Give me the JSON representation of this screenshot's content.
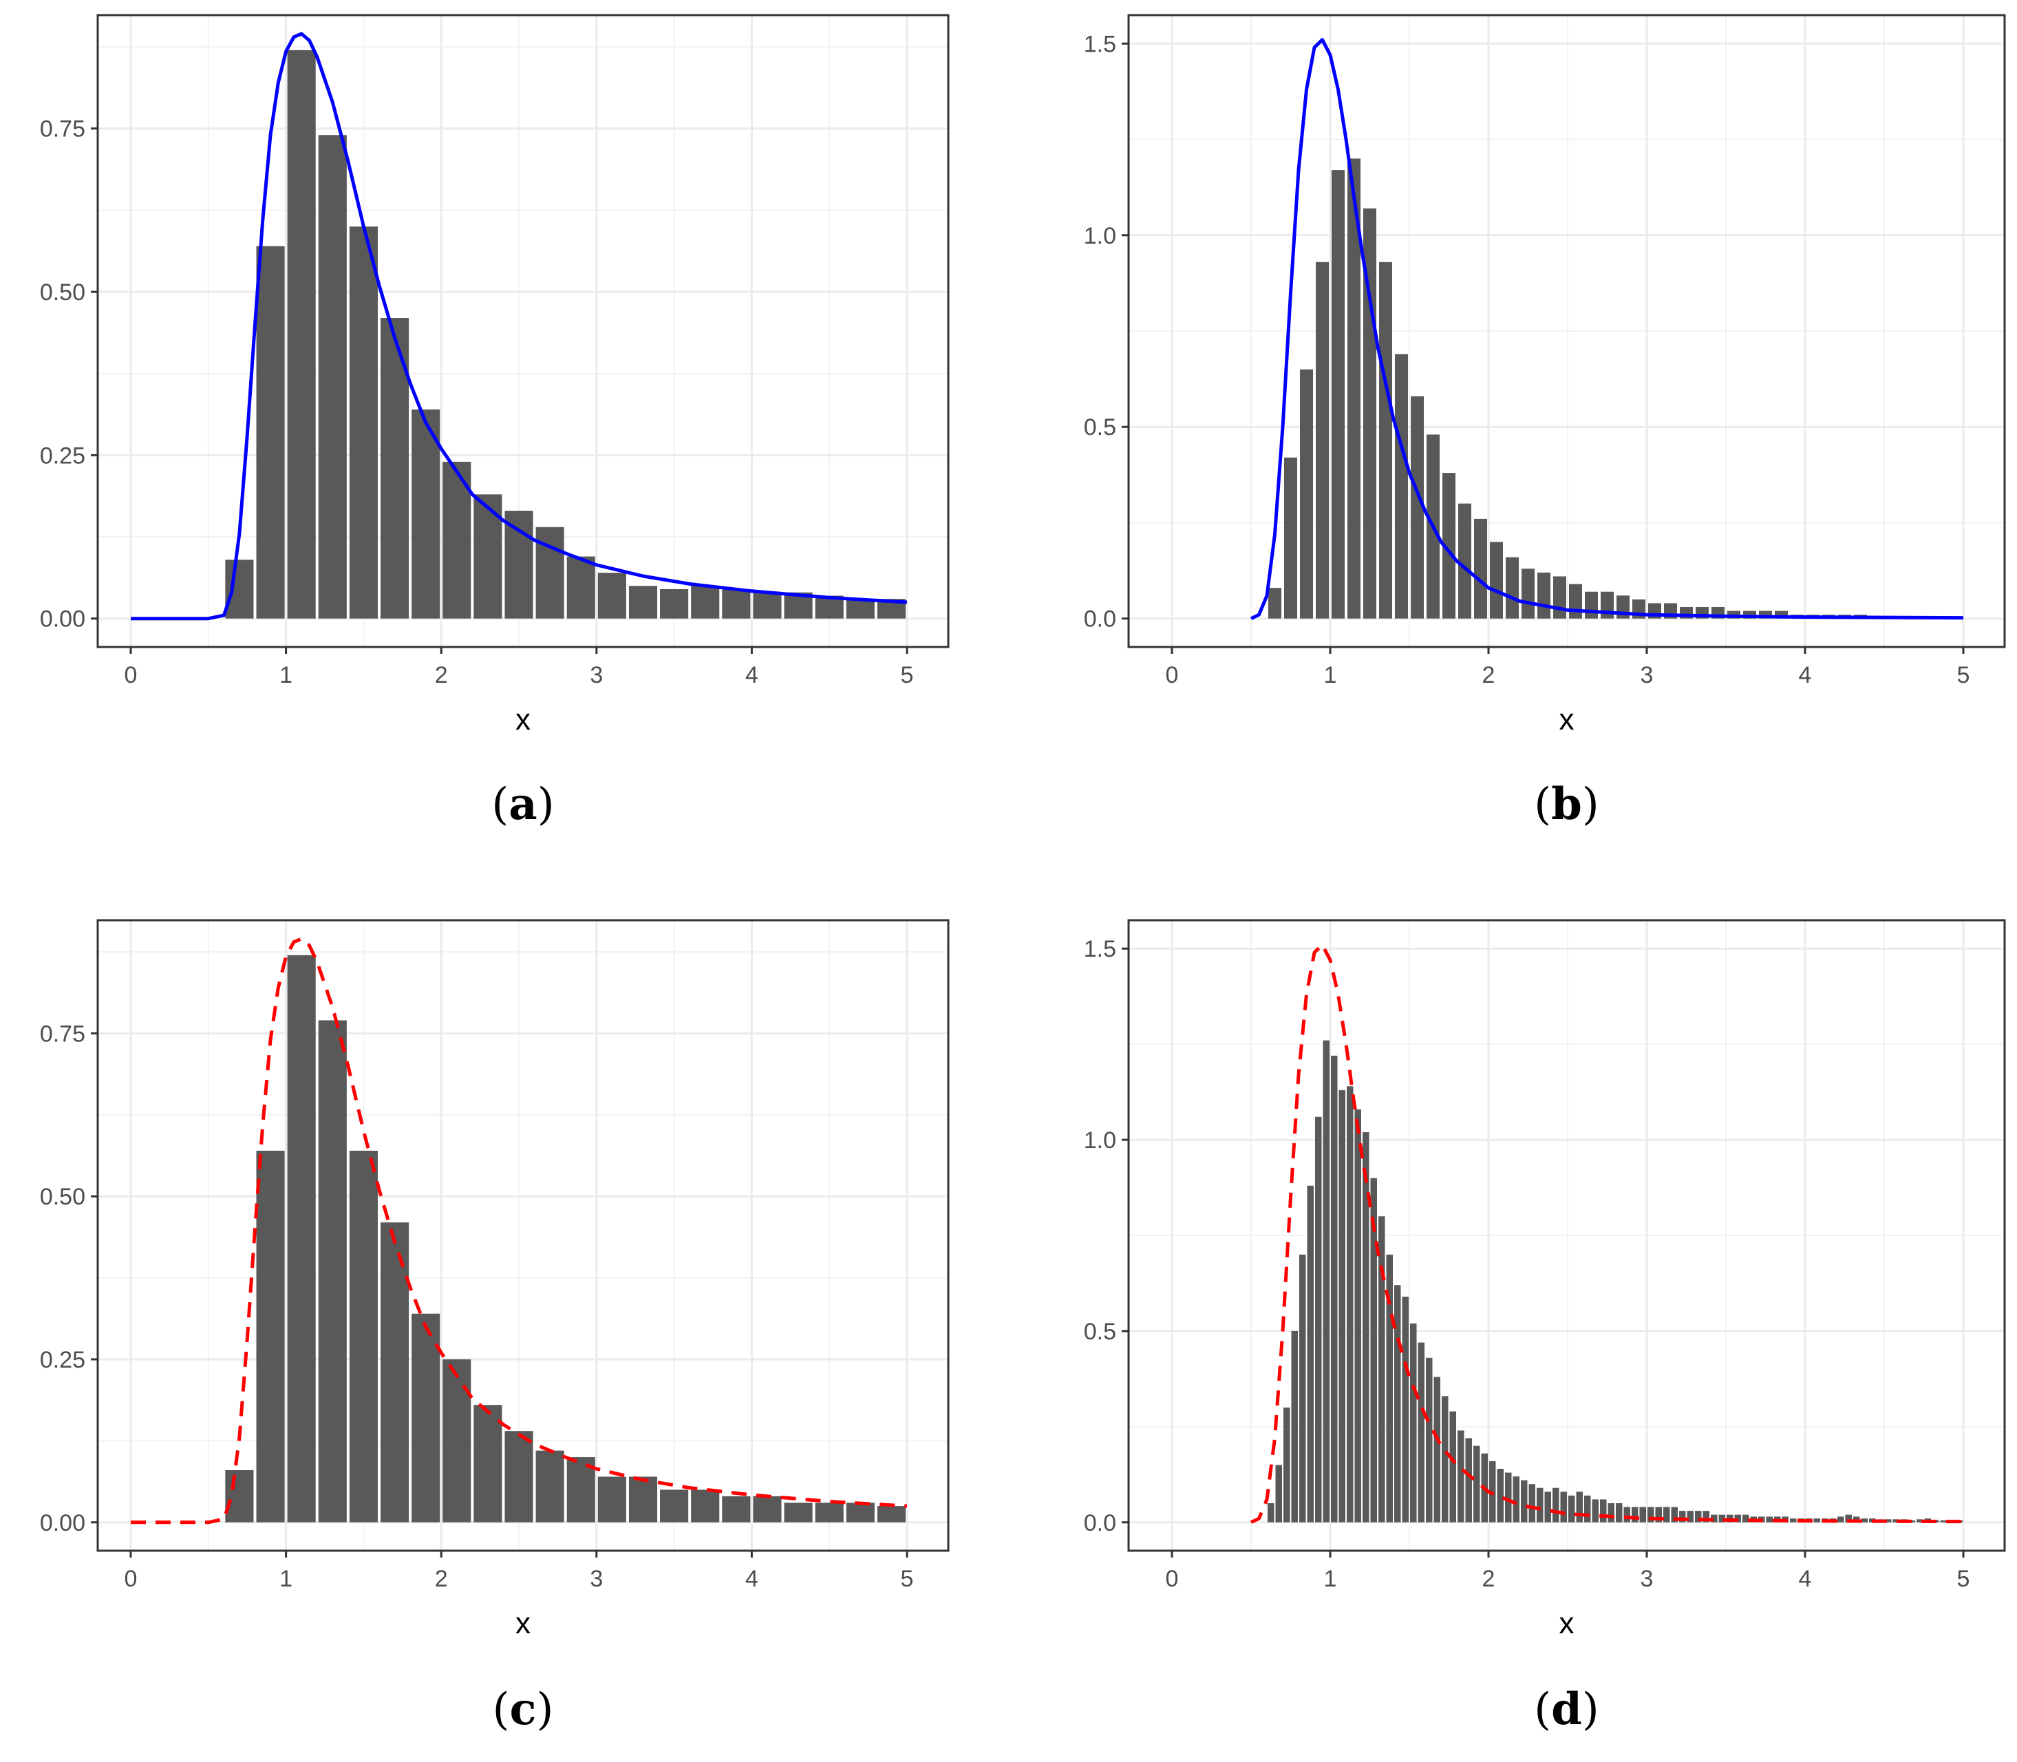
{
  "chart_data": [
    {
      "type": "bar",
      "caption": "(a)",
      "caption_letter": "a",
      "xlabel": "x",
      "ylabel": "",
      "xlim": [
        0,
        5
      ],
      "ylim": [
        0,
        0.88
      ],
      "xticks": [
        0,
        1,
        2,
        3,
        4,
        5
      ],
      "yticks": [
        0.0,
        0.25,
        0.5,
        0.75
      ],
      "ytick_labels": [
        "0.00",
        "0.25",
        "0.50",
        "0.75"
      ],
      "grid": true,
      "bar_color": "#595959",
      "bins": {
        "start": 0.6,
        "width": 0.2,
        "values": [
          0.09,
          0.57,
          0.87,
          0.74,
          0.6,
          0.46,
          0.32,
          0.24,
          0.19,
          0.165,
          0.14,
          0.095,
          0.07,
          0.05,
          0.045,
          0.05,
          0.045,
          0.04,
          0.04,
          0.035,
          0.03,
          0.03
        ]
      },
      "curve": {
        "color": "#0000ff",
        "style": "solid",
        "x": [
          0,
          0.5,
          0.6,
          0.65,
          0.7,
          0.75,
          0.8,
          0.85,
          0.9,
          0.95,
          1.0,
          1.05,
          1.1,
          1.15,
          1.2,
          1.3,
          1.4,
          1.5,
          1.6,
          1.7,
          1.8,
          1.9,
          2.0,
          2.2,
          2.4,
          2.6,
          2.8,
          3.0,
          3.3,
          3.6,
          4.0,
          4.5,
          5.0
        ],
        "y": [
          0.0,
          0.0,
          0.005,
          0.04,
          0.13,
          0.28,
          0.45,
          0.61,
          0.74,
          0.82,
          0.868,
          0.89,
          0.895,
          0.885,
          0.86,
          0.79,
          0.7,
          0.6,
          0.51,
          0.43,
          0.36,
          0.3,
          0.26,
          0.19,
          0.15,
          0.12,
          0.1,
          0.082,
          0.065,
          0.053,
          0.042,
          0.032,
          0.025
        ]
      }
    },
    {
      "type": "bar",
      "caption": "(b)",
      "caption_letter": "b",
      "xlabel": "x",
      "ylabel": "",
      "xlim": [
        0,
        5
      ],
      "ylim": [
        0,
        1.5
      ],
      "xticks": [
        0,
        1,
        2,
        3,
        4,
        5
      ],
      "yticks": [
        0.0,
        0.5,
        1.0,
        1.5
      ],
      "ytick_labels": [
        "0.0",
        "0.5",
        "1.0",
        "1.5"
      ],
      "grid": true,
      "bar_color": "#595959",
      "bins": {
        "start": 0.6,
        "width": 0.1,
        "values": [
          0.08,
          0.42,
          0.65,
          0.93,
          1.17,
          1.2,
          1.07,
          0.93,
          0.69,
          0.58,
          0.48,
          0.38,
          0.3,
          0.26,
          0.2,
          0.16,
          0.13,
          0.12,
          0.11,
          0.09,
          0.07,
          0.07,
          0.06,
          0.05,
          0.04,
          0.04,
          0.03,
          0.03,
          0.03,
          0.02,
          0.02,
          0.02,
          0.02,
          0.01,
          0.01,
          0.01,
          0.01,
          0.01,
          0.005,
          0.005,
          0.003,
          0.003
        ]
      },
      "curve": {
        "color": "#0000ff",
        "style": "solid",
        "x": [
          0.5,
          0.55,
          0.6,
          0.65,
          0.7,
          0.75,
          0.8,
          0.85,
          0.9,
          0.95,
          1.0,
          1.05,
          1.1,
          1.15,
          1.2,
          1.3,
          1.4,
          1.5,
          1.6,
          1.7,
          1.8,
          2.0,
          2.2,
          2.5,
          3.0,
          3.5,
          4.0,
          5.0
        ],
        "y": [
          0.0,
          0.01,
          0.06,
          0.22,
          0.5,
          0.85,
          1.17,
          1.38,
          1.49,
          1.51,
          1.47,
          1.38,
          1.25,
          1.1,
          0.96,
          0.71,
          0.52,
          0.38,
          0.28,
          0.2,
          0.15,
          0.08,
          0.045,
          0.022,
          0.01,
          0.006,
          0.004,
          0.002
        ]
      }
    },
    {
      "type": "bar",
      "caption": "(c)",
      "caption_letter": "c",
      "xlabel": "x",
      "ylabel": "",
      "xlim": [
        0,
        5
      ],
      "ylim": [
        0,
        0.88
      ],
      "xticks": [
        0,
        1,
        2,
        3,
        4,
        5
      ],
      "yticks": [
        0.0,
        0.25,
        0.5,
        0.75
      ],
      "ytick_labels": [
        "0.00",
        "0.25",
        "0.50",
        "0.75"
      ],
      "grid": true,
      "bar_color": "#595959",
      "bins": {
        "start": 0.6,
        "width": 0.2,
        "values": [
          0.08,
          0.57,
          0.87,
          0.77,
          0.57,
          0.46,
          0.32,
          0.25,
          0.18,
          0.14,
          0.11,
          0.1,
          0.07,
          0.07,
          0.05,
          0.05,
          0.04,
          0.04,
          0.03,
          0.03,
          0.03,
          0.025
        ]
      },
      "curve": {
        "color": "#ff0000",
        "style": "dashed",
        "x": [
          0,
          0.5,
          0.6,
          0.65,
          0.7,
          0.75,
          0.8,
          0.85,
          0.9,
          0.95,
          1.0,
          1.05,
          1.1,
          1.15,
          1.2,
          1.3,
          1.4,
          1.5,
          1.6,
          1.7,
          1.8,
          1.9,
          2.0,
          2.2,
          2.4,
          2.6,
          2.8,
          3.0,
          3.3,
          3.6,
          4.0,
          4.5,
          5.0
        ],
        "y": [
          0.0,
          0.0,
          0.005,
          0.04,
          0.13,
          0.28,
          0.45,
          0.61,
          0.74,
          0.82,
          0.868,
          0.89,
          0.895,
          0.885,
          0.86,
          0.79,
          0.7,
          0.6,
          0.51,
          0.43,
          0.36,
          0.3,
          0.26,
          0.19,
          0.15,
          0.12,
          0.1,
          0.082,
          0.065,
          0.053,
          0.042,
          0.032,
          0.025
        ]
      }
    },
    {
      "type": "bar",
      "caption": "(d)",
      "caption_letter": "d",
      "xlabel": "x",
      "ylabel": "",
      "xlim": [
        0,
        5
      ],
      "ylim": [
        0,
        1.5
      ],
      "xticks": [
        0,
        1,
        2,
        3,
        4,
        5
      ],
      "yticks": [
        0.0,
        0.5,
        1.0,
        1.5
      ],
      "ytick_labels": [
        "0.0",
        "0.5",
        "1.0",
        "1.5"
      ],
      "grid": true,
      "bar_color": "#595959",
      "bins": {
        "start": 0.6,
        "width": 0.05,
        "values": [
          0.05,
          0.15,
          0.3,
          0.5,
          0.7,
          0.88,
          1.06,
          1.26,
          1.22,
          1.13,
          1.14,
          1.08,
          1.02,
          0.9,
          0.8,
          0.7,
          0.62,
          0.59,
          0.52,
          0.47,
          0.43,
          0.38,
          0.33,
          0.29,
          0.24,
          0.22,
          0.2,
          0.18,
          0.16,
          0.14,
          0.13,
          0.12,
          0.11,
          0.1,
          0.09,
          0.08,
          0.09,
          0.08,
          0.07,
          0.08,
          0.07,
          0.06,
          0.06,
          0.05,
          0.05,
          0.04,
          0.04,
          0.04,
          0.04,
          0.04,
          0.04,
          0.04,
          0.03,
          0.03,
          0.03,
          0.03,
          0.02,
          0.02,
          0.02,
          0.02,
          0.02,
          0.015,
          0.015,
          0.015,
          0.015,
          0.015,
          0.01,
          0.01,
          0.01,
          0.01,
          0.01,
          0.01,
          0.015,
          0.02,
          0.015,
          0.01,
          0.01,
          0.008,
          0.008,
          0.008,
          0.008,
          0.005,
          0.008,
          0.01,
          0.006,
          0.005,
          0.005,
          0.005
        ]
      },
      "curve": {
        "color": "#ff0000",
        "style": "dashed",
        "x": [
          0.5,
          0.55,
          0.6,
          0.65,
          0.7,
          0.75,
          0.8,
          0.85,
          0.9,
          0.95,
          1.0,
          1.05,
          1.1,
          1.15,
          1.2,
          1.3,
          1.4,
          1.5,
          1.6,
          1.7,
          1.8,
          2.0,
          2.2,
          2.5,
          3.0,
          3.5,
          4.0,
          5.0
        ],
        "y": [
          0.0,
          0.01,
          0.06,
          0.22,
          0.5,
          0.85,
          1.17,
          1.38,
          1.49,
          1.51,
          1.47,
          1.38,
          1.25,
          1.1,
          0.96,
          0.71,
          0.52,
          0.38,
          0.28,
          0.2,
          0.15,
          0.08,
          0.045,
          0.022,
          0.01,
          0.006,
          0.004,
          0.002
        ]
      }
    }
  ]
}
